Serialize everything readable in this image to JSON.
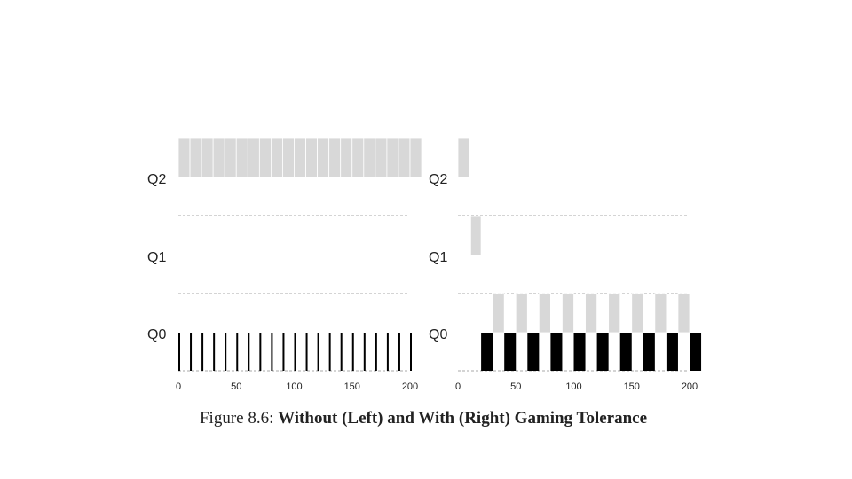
{
  "figure": {
    "caption_prefix": "Figure 8.6:",
    "caption_title": "Without (Left) and With (Right) Gaming Tolerance"
  },
  "colors": {
    "gray": "#d8d8d8",
    "black": "#000000",
    "divider": "#aaaaaa",
    "axis": "#888888"
  },
  "chart_data": [
    {
      "type": "bar",
      "panel": "left",
      "queues": [
        "Q2",
        "Q1",
        "Q0"
      ],
      "xticks": [
        0,
        50,
        100,
        150,
        200
      ],
      "xlim": [
        0,
        210
      ],
      "series": [
        {
          "queue": "Q2",
          "color": "gray",
          "segments": [
            [
              0,
              10
            ],
            [
              10,
              20
            ],
            [
              20,
              30
            ],
            [
              30,
              40
            ],
            [
              40,
              50
            ],
            [
              50,
              60
            ],
            [
              60,
              70
            ],
            [
              70,
              80
            ],
            [
              80,
              90
            ],
            [
              90,
              100
            ],
            [
              100,
              110
            ],
            [
              110,
              120
            ],
            [
              120,
              130
            ],
            [
              130,
              140
            ],
            [
              140,
              150
            ],
            [
              150,
              160
            ],
            [
              160,
              170
            ],
            [
              170,
              180
            ],
            [
              180,
              190
            ],
            [
              190,
              200
            ],
            [
              200,
              210
            ]
          ]
        },
        {
          "queue": "Q0",
          "color": "black",
          "segments": [
            [
              0,
              1
            ],
            [
              10,
              11
            ],
            [
              20,
              21
            ],
            [
              30,
              31
            ],
            [
              40,
              41
            ],
            [
              50,
              51
            ],
            [
              60,
              61
            ],
            [
              70,
              71
            ],
            [
              80,
              81
            ],
            [
              90,
              91
            ],
            [
              100,
              101
            ],
            [
              110,
              111
            ],
            [
              120,
              121
            ],
            [
              130,
              131
            ],
            [
              140,
              141
            ],
            [
              150,
              151
            ],
            [
              160,
              161
            ],
            [
              170,
              171
            ],
            [
              180,
              181
            ],
            [
              190,
              191
            ],
            [
              200,
              201
            ]
          ]
        }
      ]
    },
    {
      "type": "bar",
      "panel": "right",
      "queues": [
        "Q2",
        "Q1",
        "Q0"
      ],
      "xticks": [
        0,
        50,
        100,
        150,
        200
      ],
      "xlim": [
        0,
        210
      ],
      "series": [
        {
          "queue": "Q2",
          "color": "gray",
          "segments": [
            [
              0,
              10
            ]
          ]
        },
        {
          "queue": "Q1",
          "color": "gray",
          "segments": [
            [
              11,
              20
            ]
          ]
        },
        {
          "queue": "Q0",
          "color": "gray",
          "segments": [
            [
              30,
              40
            ],
            [
              50,
              60
            ],
            [
              70,
              80
            ],
            [
              90,
              100
            ],
            [
              110,
              120
            ],
            [
              130,
              140
            ],
            [
              150,
              160
            ],
            [
              170,
              180
            ],
            [
              190,
              200
            ]
          ]
        },
        {
          "queue": "Q0",
          "color": "black",
          "segments": [
            [
              20,
              30
            ],
            [
              40,
              50
            ],
            [
              60,
              70
            ],
            [
              80,
              90
            ],
            [
              100,
              110
            ],
            [
              120,
              130
            ],
            [
              140,
              150
            ],
            [
              160,
              170
            ],
            [
              180,
              190
            ],
            [
              200,
              210
            ]
          ]
        }
      ]
    }
  ]
}
